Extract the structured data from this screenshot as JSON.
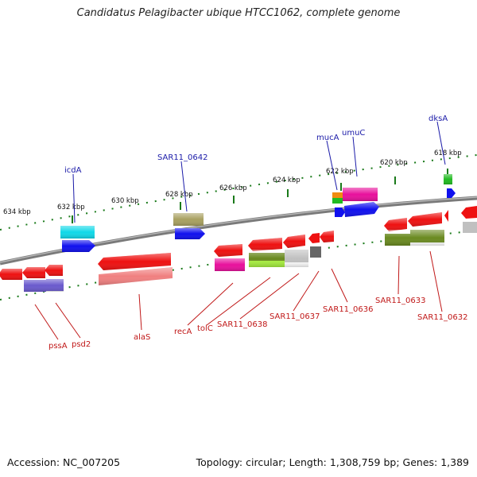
{
  "title": "Candidatus Pelagibacter ubique HTCC1062, complete genome",
  "footer": {
    "accession": "Accession: NC_007205",
    "topology": "Topology: circular; Length: 1,308,759 bp; Genes: 1,389"
  },
  "ticks": [
    "634 kbp",
    "632 kbp",
    "630 kbp",
    "628 kbp",
    "626 kbp",
    "624 kbp",
    "622 kbp",
    "620 kbp",
    "618 kbp"
  ],
  "top_labels": [
    "icdA",
    "SAR11_0642",
    "mucA",
    "umuC",
    "dksA"
  ],
  "bottom_labels": [
    "pssA",
    "psd2",
    "alaS",
    "recA",
    "tolC",
    "SAR11_0638",
    "SAR11_0637",
    "SAR11_0636",
    "SAR11_0633",
    "SAR11_0632"
  ],
  "colors": {
    "backbone": "#808080",
    "red": "#ee1111",
    "pink_red": "#f08080",
    "blue": "#1010ee",
    "cyan": "#10d8e8",
    "khaki": "#a8a060",
    "magenta": "#e8109c",
    "olive": "#6a8a20",
    "lime": "#a8f040",
    "silver": "#c0c0c0",
    "dark_gray": "#666666",
    "slate_blue": "#6a5acd",
    "orange": "#f08c10",
    "green": "#22bb22",
    "tick_green": "#1a7a1a",
    "label_blue": "#1a1aa8",
    "label_red": "#c01818"
  }
}
